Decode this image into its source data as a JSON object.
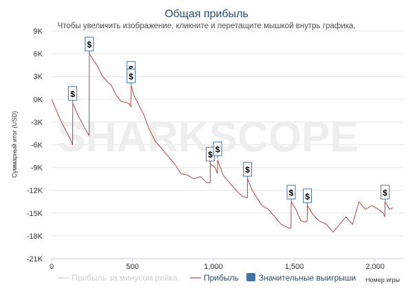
{
  "chart_data": {
    "type": "line",
    "title": "Общая прибыль",
    "subtitle": "Чтобы увеличить изображение, кликните и перетащите мышкой внутрь графика.",
    "xlabel": "Номер игры",
    "ylabel": "Суммарный итог (USD)",
    "xlim": [
      0,
      2150
    ],
    "ylim": [
      -21000,
      9000
    ],
    "x_ticks": [
      0,
      500,
      1000,
      1500,
      2000
    ],
    "x_tick_labels": [
      "0",
      "500",
      "1,000",
      "1,500",
      "2,000"
    ],
    "y_ticks": [
      9000,
      6000,
      3000,
      0,
      -3000,
      -6000,
      -9000,
      -12000,
      -15000,
      -18000,
      -21000
    ],
    "y_tick_labels": [
      "9K",
      "6K",
      "3K",
      "0K",
      "-3K",
      "-6K",
      "-9K",
      "-12K",
      "-15K",
      "-18K",
      "-21K"
    ],
    "grid": "horizontal",
    "watermark": "SHARKSCOPE",
    "legend": {
      "placement": "bottom",
      "items": [
        {
          "label": "Прибыль за минусом рейка",
          "color": "#cccccc"
        },
        {
          "label": "Прибыль",
          "color": "#aa4643"
        },
        {
          "label": "Значительные выигрыши",
          "color": "#4572a7"
        }
      ]
    },
    "series": [
      {
        "name": "Прибыль",
        "color": "#aa4643",
        "x": [
          0,
          30,
          60,
          90,
          110,
          130,
          131,
          160,
          190,
          210,
          232,
          233,
          250,
          280,
          310,
          340,
          370,
          400,
          430,
          460,
          480,
          490,
          491,
          510,
          540,
          570,
          600,
          640,
          680,
          720,
          760,
          800,
          840,
          880,
          920,
          960,
          980,
          981,
          1010,
          1025,
          1026,
          1060,
          1100,
          1140,
          1180,
          1210,
          1211,
          1240,
          1270,
          1300,
          1340,
          1380,
          1420,
          1470,
          1480,
          1481,
          1510,
          1540,
          1570,
          1580,
          1581,
          1610,
          1650,
          1700,
          1740,
          1780,
          1820,
          1860,
          1900,
          1940,
          1980,
          2020,
          2050,
          2060,
          2061,
          2090,
          2110
        ],
        "y": [
          0,
          -1500,
          -3000,
          -4200,
          -5000,
          -6000,
          -500,
          -2000,
          -3200,
          -4000,
          -4800,
          6000,
          5400,
          4500,
          3200,
          2400,
          1800,
          500,
          -300,
          -400,
          -600,
          -1000,
          1800,
          500,
          -800,
          -2000,
          -3800,
          -5500,
          -6500,
          -7500,
          -8500,
          -9800,
          -10000,
          -10500,
          -10200,
          -11000,
          -11000,
          -8500,
          -9000,
          -9800,
          -8000,
          -10000,
          -11000,
          -12000,
          -12800,
          -13000,
          -10500,
          -12000,
          -13000,
          -14000,
          -14500,
          -15500,
          -16500,
          -17000,
          -17000,
          -13500,
          -14500,
          -16000,
          -16200,
          -16000,
          -14000,
          -15000,
          -16000,
          -16500,
          -17500,
          -16500,
          -15500,
          -16500,
          -13500,
          -14500,
          -14000,
          -14500,
          -15000,
          -15500,
          -13500,
          -14500,
          -14300
        ]
      }
    ],
    "flags": [
      {
        "label": "$",
        "x": 130,
        "y": -500
      },
      {
        "label": "$",
        "x": 233,
        "y": 6000
      },
      {
        "label": "$",
        "x": 491,
        "y": 2800
      },
      {
        "label": "$",
        "x": 491,
        "y": 1800
      },
      {
        "label": "$",
        "x": 981,
        "y": -8500
      },
      {
        "label": "$",
        "x": 1026,
        "y": -7800
      },
      {
        "label": "$",
        "x": 1211,
        "y": -10500
      },
      {
        "label": "$",
        "x": 1481,
        "y": -13500
      },
      {
        "label": "$",
        "x": 1581,
        "y": -14000
      },
      {
        "label": "$",
        "x": 2061,
        "y": -13500
      }
    ]
  }
}
